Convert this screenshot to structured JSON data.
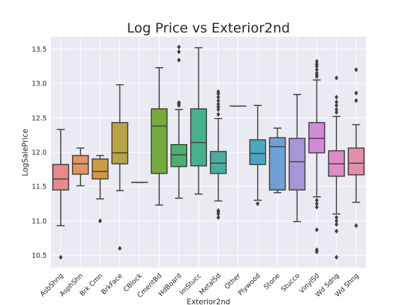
{
  "chart_data": {
    "type": "box",
    "title": "Log Price vs Exterior2nd",
    "xlabel": "Exterior2nd",
    "ylabel": "LogSalePrice",
    "ylim": [
      10.32,
      13.68
    ],
    "yticks": [
      10.5,
      11.0,
      11.5,
      12.0,
      12.5,
      13.0,
      13.5
    ],
    "ytick_labels": [
      "10.5",
      "11.0",
      "11.5",
      "12.0",
      "12.5",
      "13.0",
      "13.5"
    ],
    "grid": true,
    "categories": [
      "AsbShng",
      "AsphShn",
      "Brk Cmn",
      "BrkFace",
      "CBlock",
      "CmentBd",
      "HdBoard",
      "ImStucc",
      "MetalSd",
      "Other",
      "Plywood",
      "Stone",
      "Stucco",
      "VinylSd",
      "Wd Sdng",
      "Wd Shng"
    ],
    "boxes": [
      {
        "category": "AsbShng",
        "color": "#e68a8f",
        "whislo": 10.93,
        "q1": 11.45,
        "med": 11.61,
        "q3": 11.82,
        "whishi": 12.33,
        "fliers": [
          10.47
        ]
      },
      {
        "category": "AsphShn",
        "color": "#e29560",
        "whislo": 11.51,
        "q1": 11.68,
        "med": 11.83,
        "q3": 11.95,
        "whishi": 12.06,
        "fliers": []
      },
      {
        "category": "Brk Cmn",
        "color": "#cd9b3f",
        "whislo": 11.32,
        "q1": 11.61,
        "med": 11.72,
        "q3": 11.9,
        "whishi": 11.95,
        "fliers": [
          11.0
        ]
      },
      {
        "category": "BrkFace",
        "color": "#b9a445",
        "whislo": 11.44,
        "q1": 11.83,
        "med": 11.99,
        "q3": 12.43,
        "whishi": 12.98,
        "fliers": [
          10.6
        ]
      },
      {
        "category": "CBlock",
        "color": "#9daa3f",
        "whislo": 11.56,
        "q1": 11.56,
        "med": 11.56,
        "q3": 11.56,
        "whishi": 11.56,
        "fliers": []
      },
      {
        "category": "CmentBd",
        "color": "#76aa3f",
        "whislo": 11.23,
        "q1": 11.69,
        "med": 12.38,
        "q3": 12.63,
        "whishi": 13.23,
        "fliers": []
      },
      {
        "category": "HdBoard",
        "color": "#4caf6e",
        "whislo": 11.33,
        "q1": 11.79,
        "med": 11.96,
        "q3": 12.11,
        "whishi": 12.62,
        "fliers": [
          12.68,
          12.7,
          12.72,
          13.34,
          13.46,
          13.53
        ]
      },
      {
        "category": "ImStucc",
        "color": "#48b08f",
        "whislo": 11.39,
        "q1": 11.8,
        "med": 12.14,
        "q3": 12.63,
        "whishi": 13.52,
        "fliers": []
      },
      {
        "category": "MetalSd",
        "color": "#4bac9f",
        "whislo": 11.29,
        "q1": 11.69,
        "med": 11.84,
        "q3": 12.01,
        "whishi": 12.49,
        "fliers": [
          11.05,
          11.1,
          11.13,
          11.15,
          12.55,
          12.62,
          12.66,
          12.7,
          12.75,
          12.8,
          12.85,
          12.88
        ]
      },
      {
        "category": "Other",
        "color": "#4daaad",
        "whislo": 12.67,
        "q1": 12.67,
        "med": 12.67,
        "q3": 12.67,
        "whishi": 12.67,
        "fliers": []
      },
      {
        "category": "Plywood",
        "color": "#4ca5c2",
        "whislo": 11.3,
        "q1": 11.82,
        "med": 11.98,
        "q3": 12.18,
        "whishi": 12.68,
        "fliers": [
          11.25
        ]
      },
      {
        "category": "Stone",
        "color": "#6e9fd6",
        "whislo": 11.41,
        "q1": 11.45,
        "med": 12.08,
        "q3": 12.21,
        "whishi": 12.35,
        "fliers": []
      },
      {
        "category": "Stucco",
        "color": "#a795d8",
        "whislo": 10.99,
        "q1": 11.45,
        "med": 11.86,
        "q3": 12.2,
        "whishi": 12.84,
        "fliers": []
      },
      {
        "category": "VinylSd",
        "color": "#d18bd6",
        "whislo": 11.35,
        "q1": 11.99,
        "med": 12.2,
        "q3": 12.43,
        "whishi": 13.05,
        "fliers": [
          10.55,
          10.58,
          10.87,
          11.2,
          11.25,
          11.3,
          13.1,
          13.12,
          13.15,
          13.2,
          13.25,
          13.28,
          13.32
        ]
      },
      {
        "category": "Wd Sdng",
        "color": "#e08bc4",
        "whislo": 11.1,
        "q1": 11.65,
        "med": 11.83,
        "q3": 12.02,
        "whishi": 12.52,
        "fliers": [
          10.47,
          10.85,
          10.95,
          11.0,
          11.05,
          12.58,
          12.62,
          12.68,
          12.73,
          12.8,
          13.08
        ]
      },
      {
        "category": "Wd Shng",
        "color": "#e38fa9",
        "whislo": 11.27,
        "q1": 11.67,
        "med": 11.84,
        "q3": 12.06,
        "whishi": 12.4,
        "fliers": [
          10.93,
          12.75,
          12.86,
          13.2
        ]
      }
    ]
  }
}
